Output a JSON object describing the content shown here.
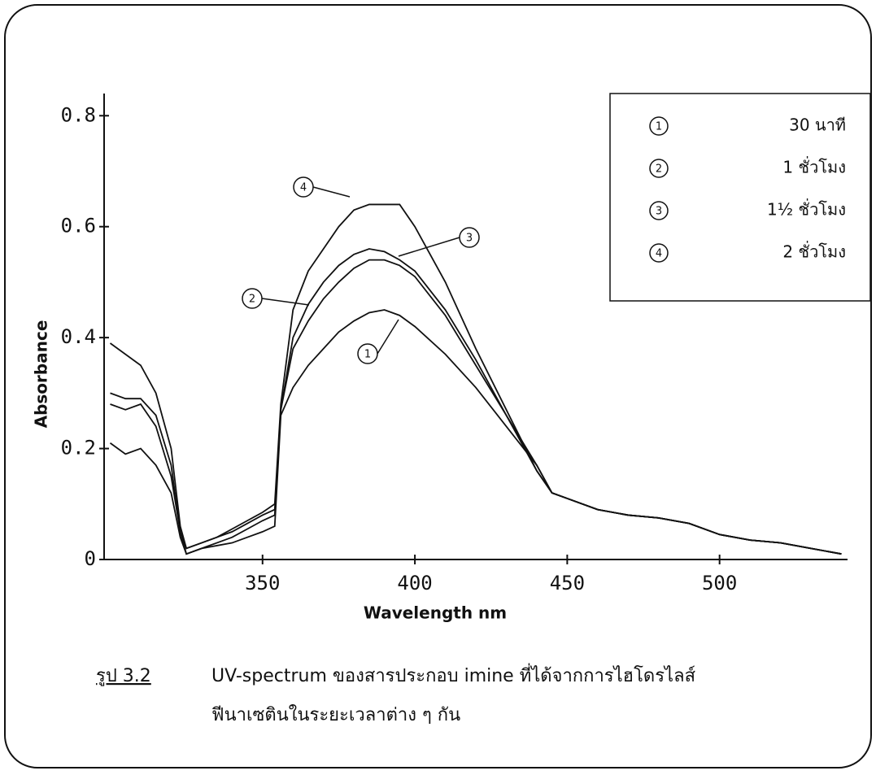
{
  "chart_data": {
    "type": "line",
    "y_label": "Absorbance",
    "x_label": "Wavelength nm",
    "x": [
      300,
      305,
      310,
      315,
      320,
      323,
      325,
      330,
      335,
      340,
      345,
      350,
      354,
      356,
      360,
      365,
      370,
      375,
      380,
      385,
      390,
      395,
      400,
      410,
      420,
      430,
      440,
      445,
      450,
      460,
      470,
      480,
      490,
      500,
      510,
      520,
      530,
      540
    ],
    "series": [
      {
        "name": "30 นาที",
        "tag": "1",
        "color": "#111111",
        "values": [
          0.21,
          0.19,
          0.2,
          0.17,
          0.12,
          0.04,
          0.01,
          0.02,
          0.025,
          0.03,
          0.04,
          0.05,
          0.06,
          0.26,
          0.31,
          0.35,
          0.38,
          0.41,
          0.43,
          0.445,
          0.45,
          0.44,
          0.42,
          0.37,
          0.31,
          0.24,
          0.17,
          0.12,
          0.11,
          0.09,
          0.08,
          0.075,
          0.065,
          0.045,
          0.035,
          0.03,
          0.02,
          0.01
        ]
      },
      {
        "name": "1 ชั่วโมง",
        "tag": "2",
        "color": "#111111",
        "values": [
          0.28,
          0.27,
          0.28,
          0.24,
          0.15,
          0.05,
          0.01,
          0.02,
          0.03,
          0.04,
          0.055,
          0.07,
          0.08,
          0.27,
          0.38,
          0.43,
          0.47,
          0.5,
          0.525,
          0.54,
          0.54,
          0.53,
          0.51,
          0.44,
          0.35,
          0.26,
          0.17,
          0.12,
          0.11,
          0.09,
          0.08,
          0.075,
          0.065,
          0.045,
          0.035,
          0.03,
          0.02,
          0.01
        ]
      },
      {
        "name": "1½ ชั่วโมง",
        "tag": "3",
        "color": "#111111",
        "values": [
          0.3,
          0.29,
          0.29,
          0.26,
          0.17,
          0.05,
          0.02,
          0.03,
          0.04,
          0.05,
          0.065,
          0.08,
          0.09,
          0.27,
          0.4,
          0.46,
          0.5,
          0.53,
          0.55,
          0.56,
          0.555,
          0.54,
          0.52,
          0.45,
          0.36,
          0.26,
          0.16,
          0.12,
          0.11,
          0.09,
          0.08,
          0.075,
          0.065,
          0.045,
          0.035,
          0.03,
          0.02,
          0.01
        ]
      },
      {
        "name": "2 ชั่วโมง",
        "tag": "4",
        "color": "#111111",
        "values": [
          0.39,
          0.37,
          0.35,
          0.3,
          0.2,
          0.06,
          0.02,
          0.03,
          0.04,
          0.055,
          0.07,
          0.085,
          0.1,
          0.28,
          0.45,
          0.52,
          0.56,
          0.6,
          0.63,
          0.64,
          0.64,
          0.64,
          0.6,
          0.5,
          0.38,
          0.27,
          0.16,
          0.12,
          0.11,
          0.09,
          0.08,
          0.075,
          0.065,
          0.045,
          0.035,
          0.03,
          0.02,
          0.01
        ]
      }
    ],
    "xlim": [
      298,
      542
    ],
    "xticks": [
      350,
      400,
      450,
      500
    ],
    "ylim": [
      0,
      0.84
    ],
    "yticks": [
      0,
      0.2,
      0.4,
      0.6,
      0.8
    ],
    "grid": false,
    "legend": "upper right",
    "caption": {
      "label": "รูป  3.2",
      "line1": "UV-spectrum ของสารประกอบ imine ที่ได้จากการไฮโดรไลส์",
      "line2": "ฟีนาเซตินในระยะเวลาต่าง ๆ กัน"
    }
  }
}
